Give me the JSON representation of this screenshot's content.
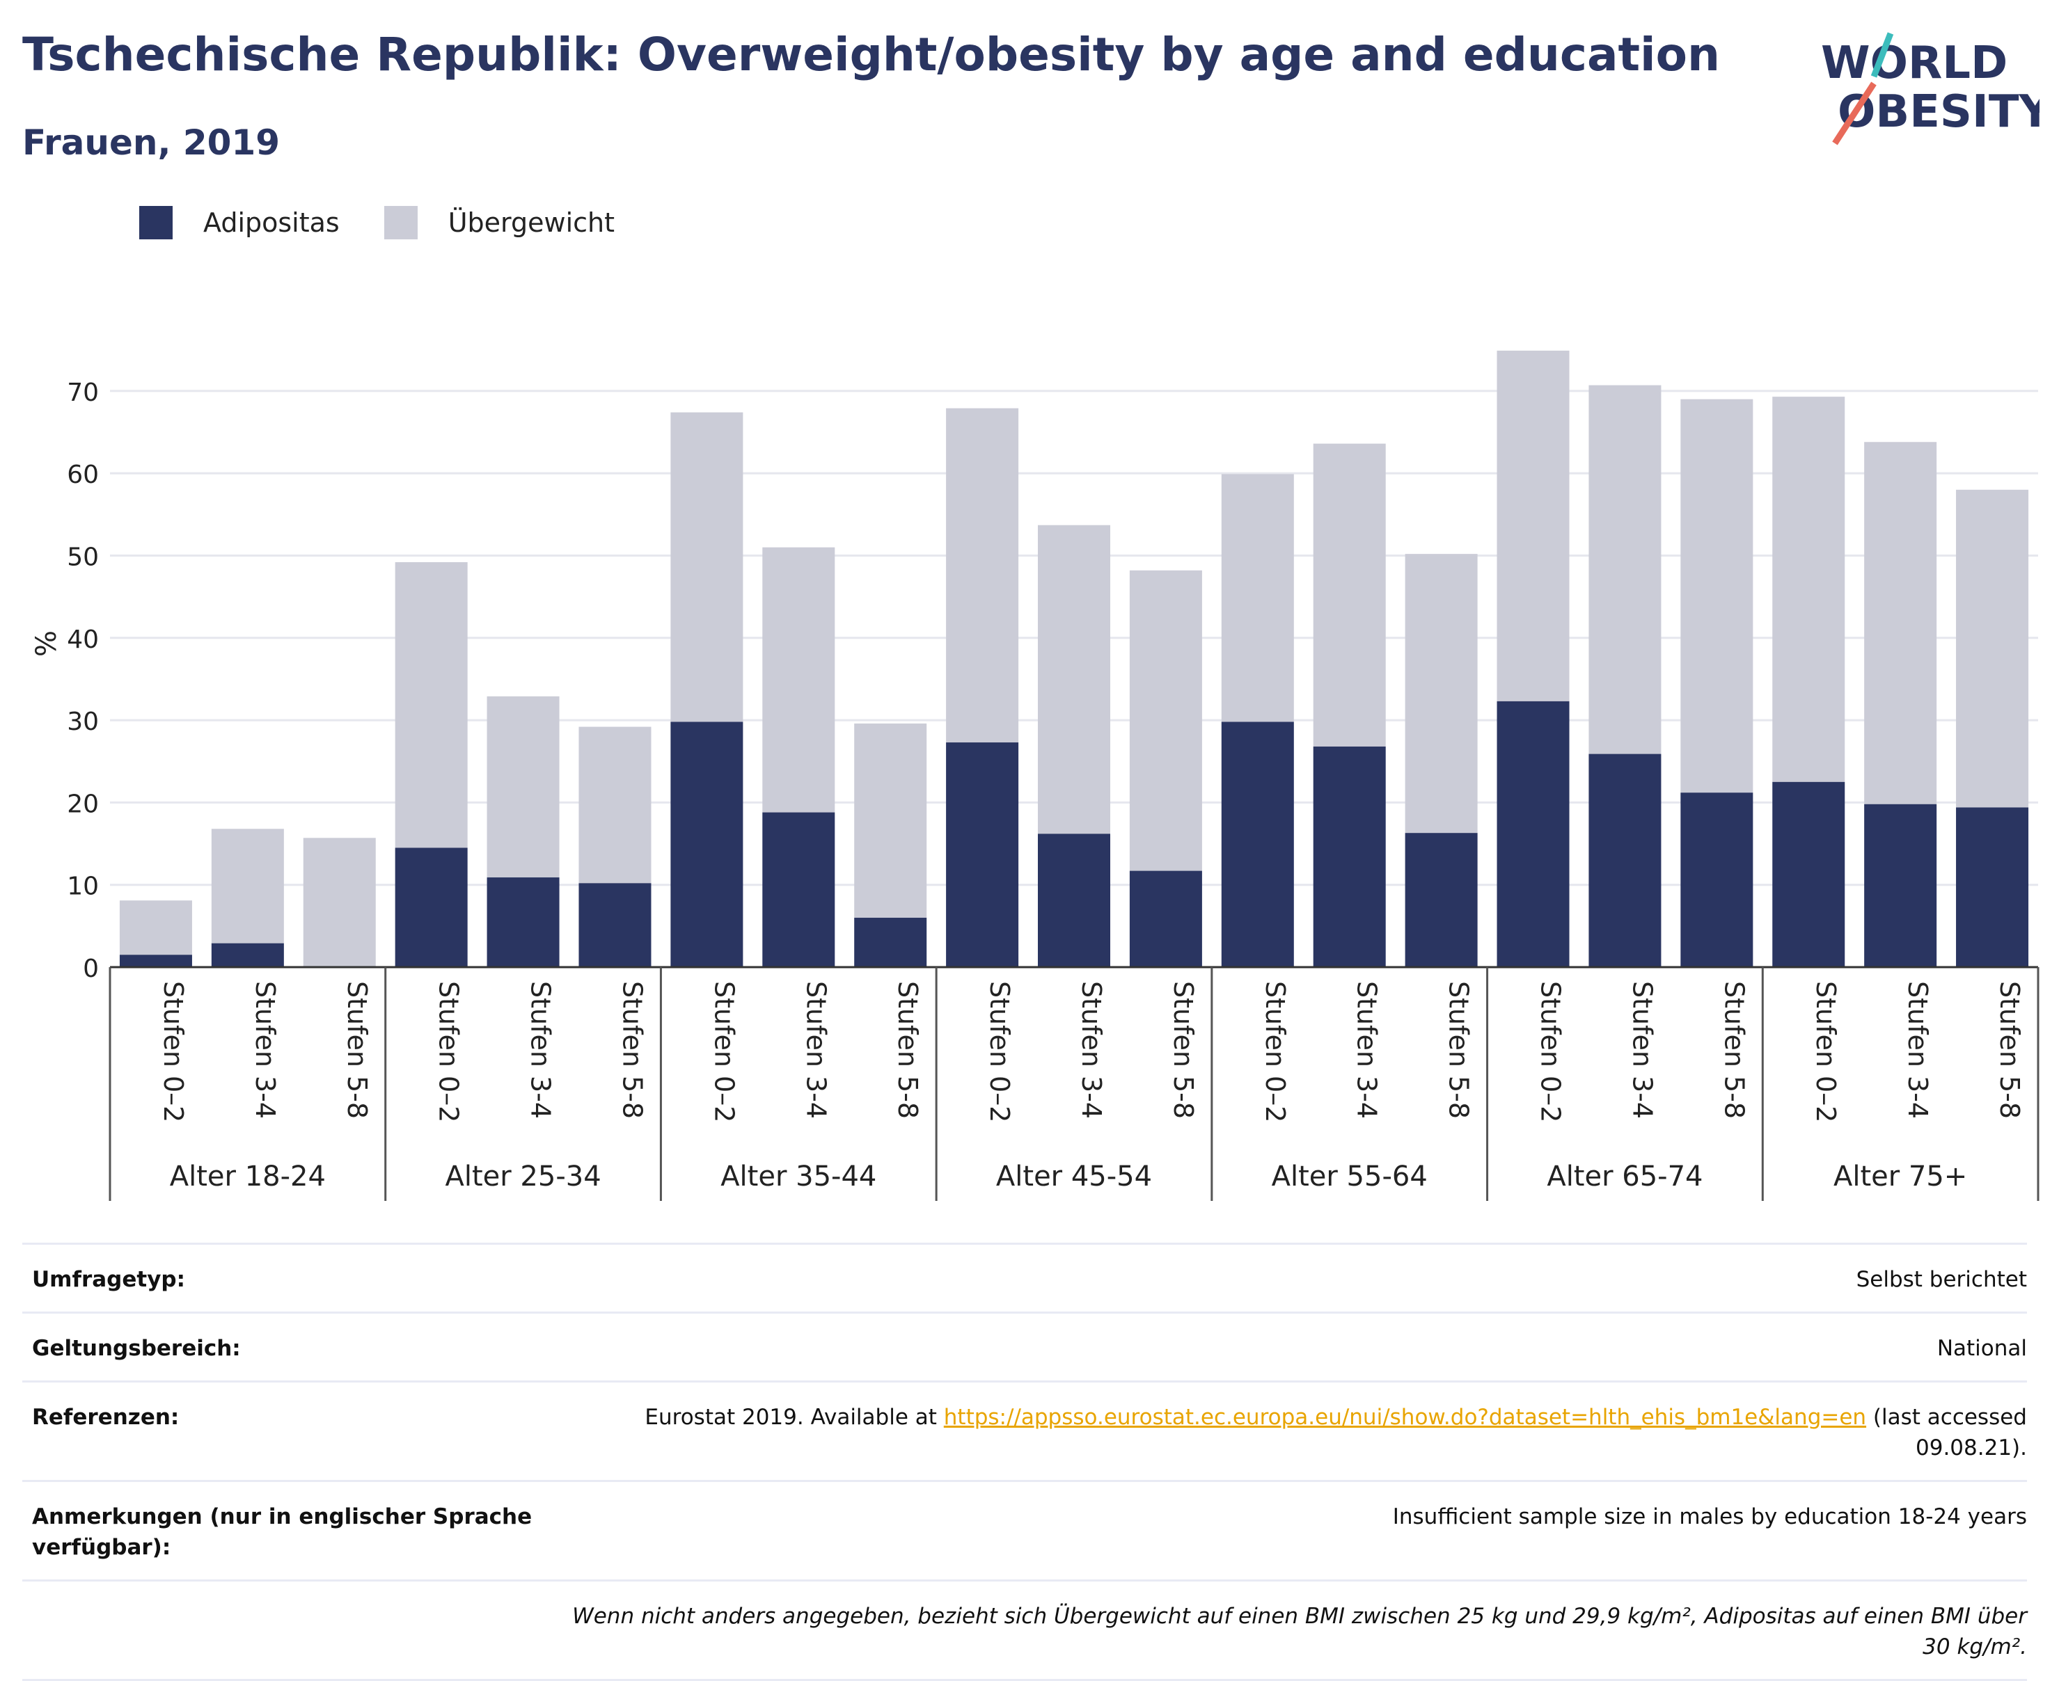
{
  "header": {
    "title": "Tschechische Republik: Overweight/obesity by age and education",
    "subtitle": "Frauen, 2019"
  },
  "logo": {
    "line1": "WORLD",
    "line2": "OBESITY"
  },
  "colors": {
    "obesity": "#2a3561",
    "overweight": "#cbccd7",
    "title": "#2a3561",
    "link": "#e8a400"
  },
  "chart_data": {
    "type": "bar",
    "stacked": true,
    "ylabel": "%",
    "ylim": [
      0,
      75
    ],
    "yticks": [
      0,
      10,
      20,
      30,
      40,
      50,
      60,
      70
    ],
    "grid": true,
    "legend": "top-left",
    "groups": [
      "Alter 18-24",
      "Alter 25-34",
      "Alter 35-44",
      "Alter 45-54",
      "Alter 55-64",
      "Alter 65-74",
      "Alter 75+"
    ],
    "subcategories": [
      "Stufen 0–2",
      "Stufen 3-4",
      "Stufen 5-8"
    ],
    "series": [
      {
        "name": "Adipositas",
        "values": [
          1.5,
          2.9,
          0,
          14.5,
          10.9,
          10.2,
          29.8,
          18.8,
          6.0,
          27.3,
          16.2,
          11.7,
          29.8,
          26.8,
          16.3,
          32.3,
          25.9,
          21.2,
          22.5,
          19.8,
          19.4
        ]
      },
      {
        "name": "Übergewicht",
        "values": [
          6.6,
          13.9,
          15.7,
          34.7,
          22.0,
          19.0,
          37.6,
          32.2,
          23.6,
          40.6,
          37.5,
          36.5,
          30.1,
          36.8,
          33.9,
          42.6,
          44.8,
          47.8,
          46.8,
          44.0,
          38.6
        ]
      }
    ]
  },
  "info": {
    "rows": [
      {
        "label": "Umfragetyp:",
        "value": "Selbst berichtet"
      },
      {
        "label": "Geltungsbereich:",
        "value": "National"
      },
      {
        "label": "Referenzen:",
        "value_pre": "Eurostat 2019. Available at ",
        "link": "https://appsso.eurostat.ec.europa.eu/nui/show.do?dataset=hlth_ehis_bm1e&lang=en",
        "value_post": " (last accessed 09.08.21)."
      },
      {
        "label": "Anmerkungen (nur in englischer Sprache verfügbar):",
        "value": "Insufficient sample size in males by education 18-24 years"
      }
    ],
    "note": "Wenn nicht anders angegeben, bezieht sich Übergewicht auf einen BMI zwischen 25 kg und 29,9 kg/m², Adipositas auf einen BMI über 30 kg/m²."
  }
}
